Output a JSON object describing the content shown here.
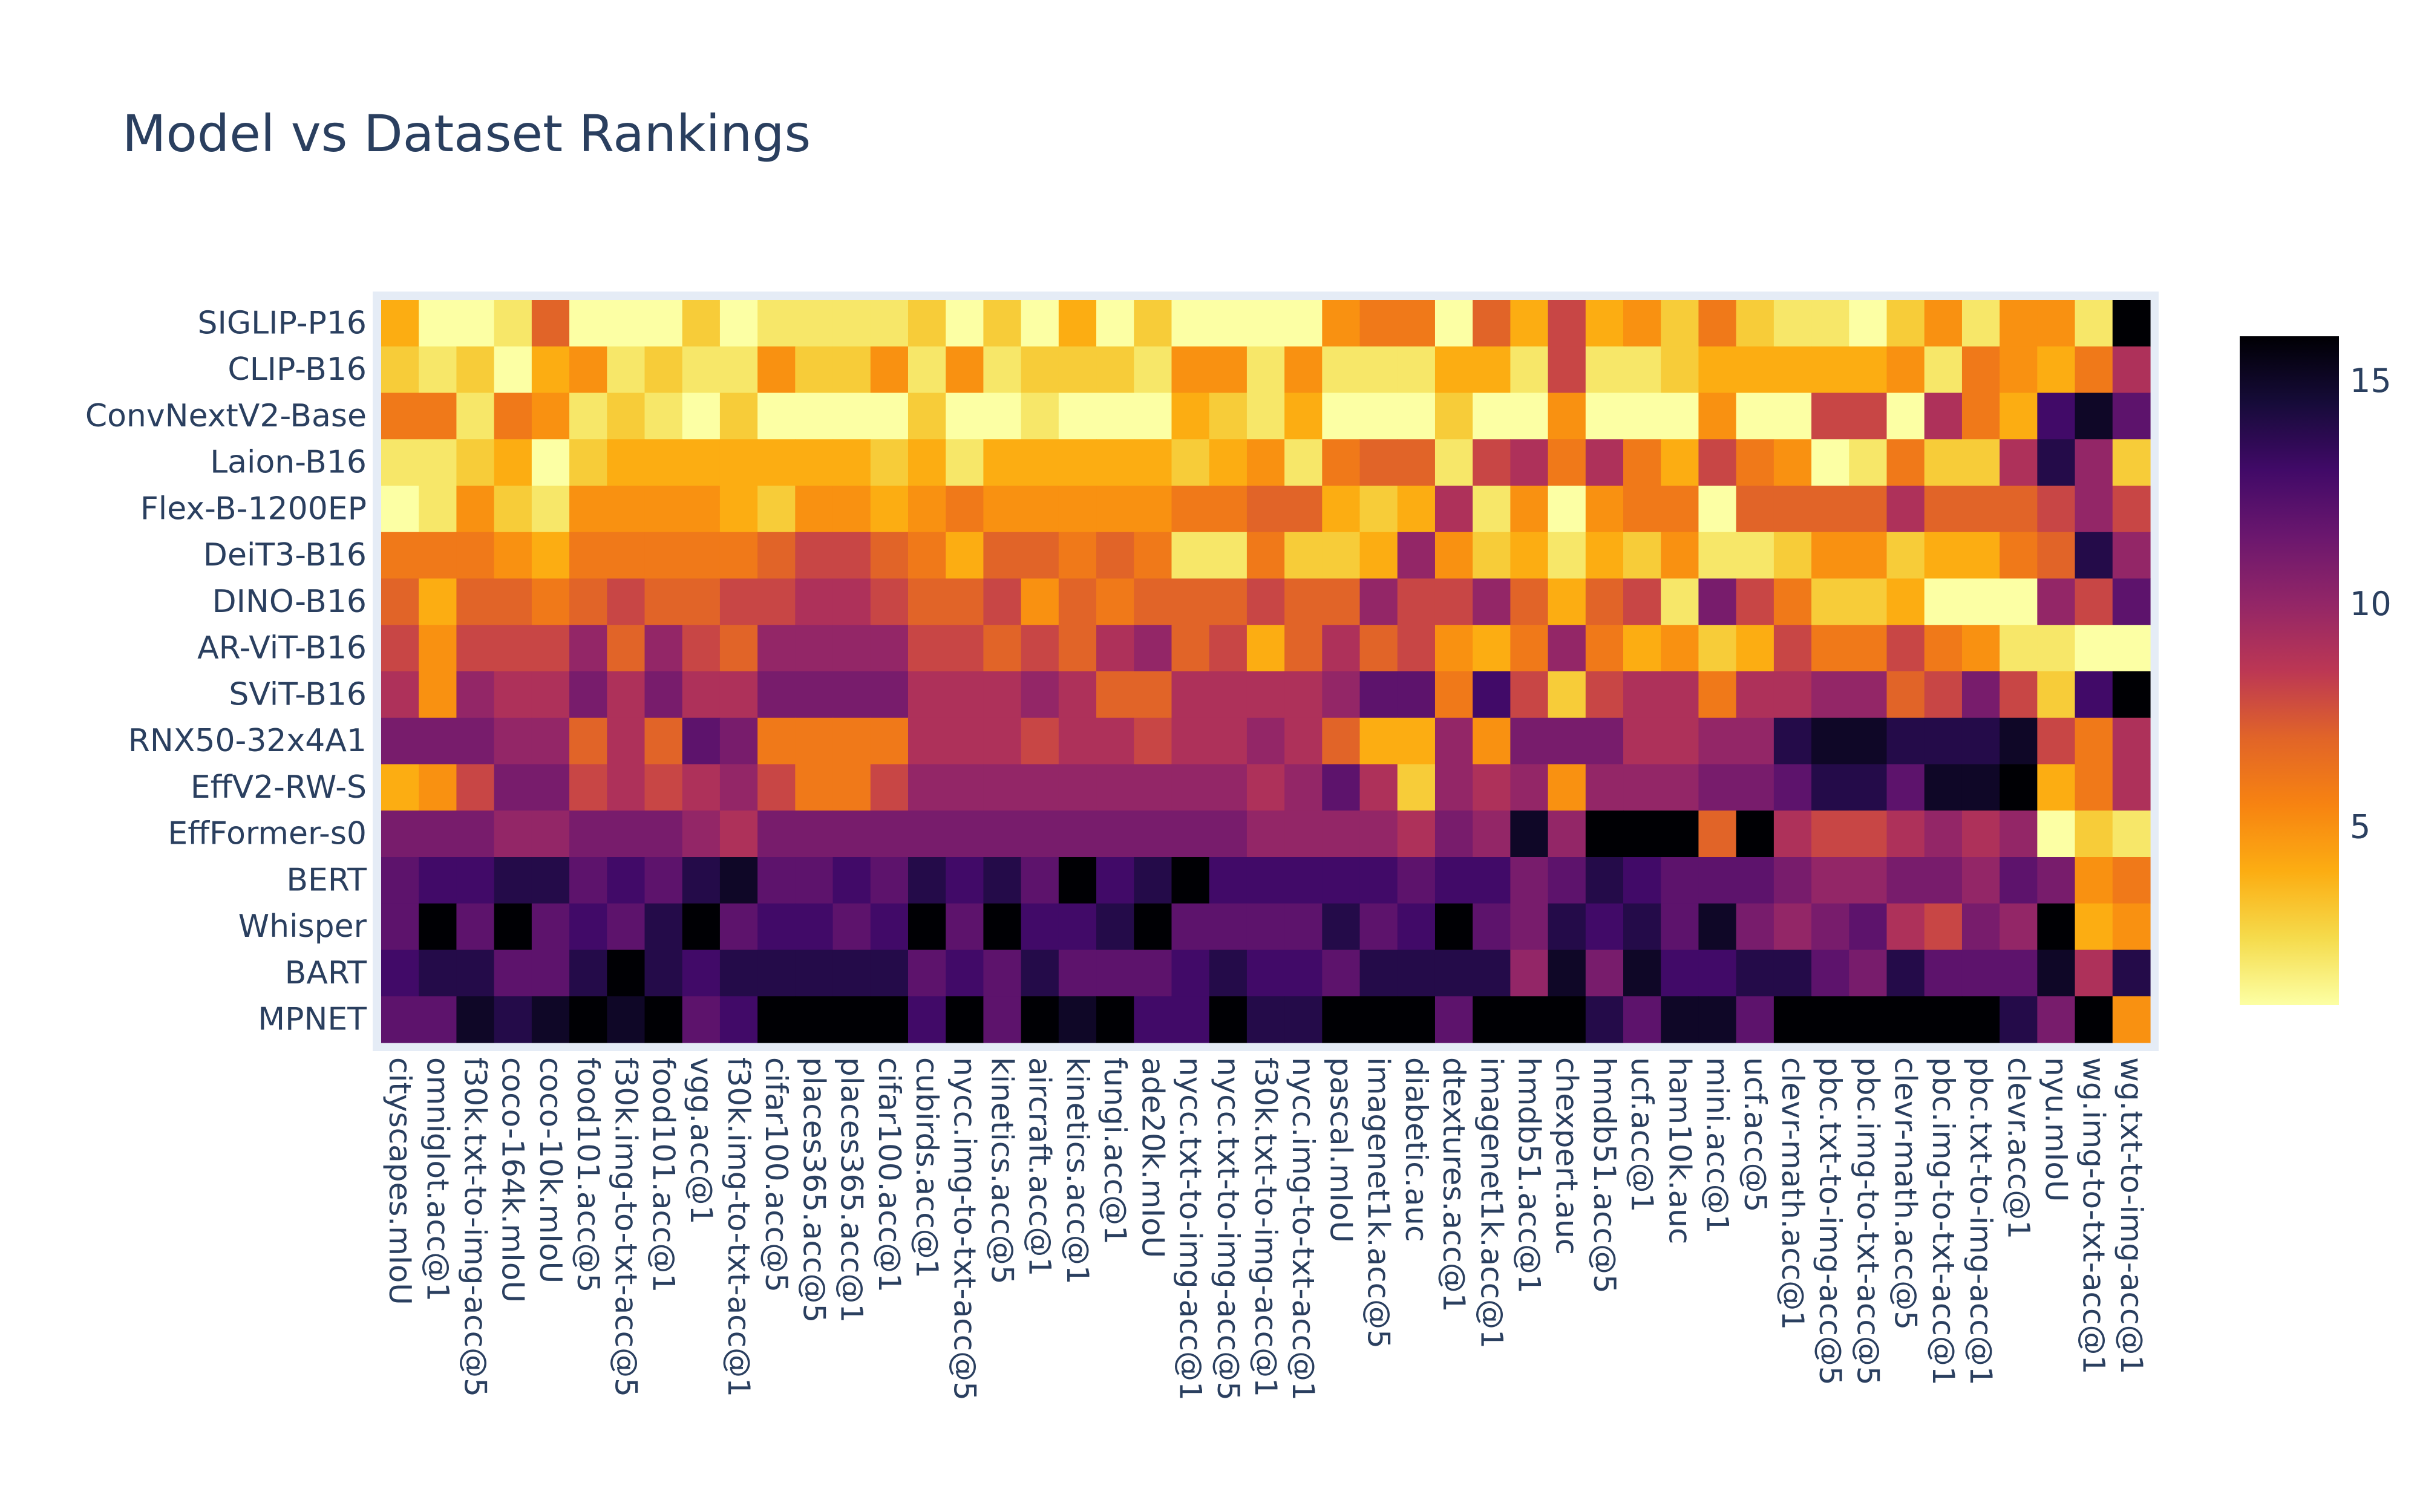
{
  "chart_data": {
    "type": "heatmap",
    "title": "Model vs Dataset Rankings",
    "colorscale": "Inferno (reversed)",
    "colorbar": {
      "range": [
        1,
        16
      ],
      "ticks": [
        5,
        10,
        15
      ]
    },
    "y_categories": [
      "SIGLIP-P16",
      "CLIP-B16",
      "ConvNextV2-Base",
      "Laion-B16",
      "Flex-B-1200EP",
      "DeiT3-B16",
      "DINO-B16",
      "AR-ViT-B16",
      "SViT-B16",
      "RNX50-32x4A1",
      "EffV2-RW-S",
      "EffFormer-s0",
      "BERT",
      "Whisper",
      "BART",
      "MPNET"
    ],
    "x_categories": [
      "cityscapes.mIoU",
      "omniglot.acc@1",
      "f30k.txt-to-img-acc@5",
      "coco-164k.mIoU",
      "coco-10k.mIoU",
      "food101.acc@5",
      "f30k.img-to-txt-acc@5",
      "food101.acc@1",
      "vgg.acc@1",
      "f30k.img-to-txt-acc@1",
      "cifar100.acc@5",
      "places365.acc@5",
      "places365.acc@1",
      "cifar100.acc@1",
      "cubirds.acc@1",
      "nycc.img-to-txt-acc@5",
      "kinetics.acc@5",
      "aircraft.acc@1",
      "kinetics.acc@1",
      "fungi.acc@1",
      "ade20k.mIoU",
      "nycc.txt-to-img-acc@1",
      "nycc.txt-to-img-acc@5",
      "f30k.txt-to-img-acc@1",
      "nycc.img-to-txt-acc@1",
      "pascal.mIoU",
      "imagenet1k.acc@5",
      "diabetic.auc",
      "dtextures.acc@1",
      "imagenet1k.acc@1",
      "hmdb51.acc@1",
      "chexpert.auc",
      "hmdb51.acc@5",
      "ucf.acc@1",
      "ham10k.auc",
      "mini.acc@1",
      "ucf.acc@5",
      "clevr-math.acc@1",
      "pbc.txt-to-img-acc@5",
      "pbc.img-to-txt-acc@5",
      "clevr-math.acc@5",
      "pbc.img-to-txt-acc@1",
      "pbc.txt-to-img-acc@1",
      "clevr.acc@1",
      "nyu.mIoU",
      "wg.img-to-txt-acc@1",
      "wg.txt-to-img-acc@1"
    ],
    "z": [
      [
        4,
        1,
        1,
        2,
        7,
        1,
        1,
        1,
        3,
        1,
        2,
        2,
        2,
        2,
        3,
        1,
        3,
        1,
        4,
        1,
        3,
        1,
        1,
        1,
        1,
        5,
        6,
        6,
        1,
        7,
        4,
        8,
        4,
        5,
        3,
        6,
        3,
        2,
        2,
        1,
        3,
        5,
        2,
        5,
        5,
        2,
        16
      ],
      [
        3,
        2,
        3,
        1,
        4,
        5,
        2,
        3,
        2,
        2,
        5,
        3,
        3,
        5,
        2,
        5,
        2,
        3,
        3,
        3,
        2,
        5,
        5,
        2,
        5,
        2,
        2,
        2,
        4,
        4,
        2,
        8,
        2,
        2,
        3,
        4,
        4,
        4,
        4,
        4,
        5,
        2,
        6,
        5,
        4,
        6,
        9
      ],
      [
        6,
        6,
        2,
        6,
        5,
        2,
        3,
        2,
        1,
        3,
        1,
        1,
        1,
        1,
        3,
        1,
        1,
        2,
        1,
        1,
        1,
        4,
        3,
        2,
        4,
        1,
        1,
        1,
        3,
        1,
        1,
        5,
        1,
        1,
        1,
        5,
        1,
        1,
        8,
        8,
        1,
        9,
        6,
        4,
        13,
        15,
        12
      ],
      [
        2,
        2,
        3,
        4,
        1,
        3,
        4,
        4,
        4,
        4,
        4,
        4,
        4,
        3,
        4,
        2,
        4,
        4,
        4,
        4,
        4,
        3,
        4,
        5,
        2,
        6,
        7,
        7,
        2,
        8,
        9,
        6,
        9,
        6,
        4,
        8,
        6,
        5,
        1,
        2,
        6,
        3,
        3,
        9,
        14,
        10,
        3
      ],
      [
        1,
        2,
        5,
        3,
        2,
        5,
        5,
        5,
        5,
        4,
        3,
        5,
        5,
        4,
        5,
        6,
        5,
        5,
        5,
        5,
        5,
        6,
        6,
        7,
        7,
        4,
        3,
        4,
        9,
        2,
        5,
        1,
        5,
        6,
        6,
        1,
        7,
        7,
        7,
        7,
        9,
        7,
        7,
        7,
        8,
        10,
        8
      ],
      [
        6,
        6,
        6,
        5,
        4,
        6,
        6,
        6,
        6,
        6,
        7,
        8,
        8,
        7,
        6,
        4,
        7,
        7,
        6,
        7,
        6,
        2,
        2,
        6,
        3,
        3,
        4,
        10,
        5,
        3,
        4,
        2,
        4,
        3,
        5,
        2,
        2,
        3,
        5,
        5,
        3,
        4,
        4,
        6,
        7,
        14,
        10
      ],
      [
        7,
        4,
        7,
        7,
        6,
        7,
        8,
        7,
        7,
        8,
        8,
        9,
        9,
        8,
        7,
        7,
        8,
        5,
        7,
        6,
        7,
        7,
        7,
        8,
        7,
        7,
        10,
        8,
        8,
        10,
        7,
        4,
        7,
        8,
        2,
        11,
        8,
        6,
        3,
        3,
        4,
        1,
        1,
        1,
        10,
        8,
        12
      ],
      [
        8,
        5,
        8,
        8,
        8,
        10,
        7,
        10,
        8,
        7,
        10,
        10,
        10,
        10,
        8,
        8,
        7,
        8,
        7,
        9,
        10,
        7,
        8,
        4,
        7,
        9,
        7,
        8,
        5,
        4,
        6,
        10,
        6,
        4,
        5,
        3,
        4,
        8,
        6,
        6,
        8,
        6,
        5,
        2,
        2,
        1,
        1
      ],
      [
        9,
        5,
        10,
        9,
        9,
        11,
        9,
        11,
        9,
        9,
        11,
        11,
        11,
        11,
        9,
        9,
        9,
        10,
        9,
        7,
        7,
        9,
        9,
        9,
        9,
        10,
        12,
        12,
        6,
        13,
        8,
        3,
        8,
        9,
        9,
        6,
        9,
        9,
        10,
        10,
        7,
        8,
        11,
        8,
        3,
        13,
        16
      ],
      [
        11,
        11,
        11,
        10,
        10,
        7,
        9,
        7,
        12,
        11,
        6,
        6,
        6,
        6,
        9,
        9,
        9,
        8,
        9,
        9,
        8,
        9,
        9,
        10,
        9,
        7,
        4,
        4,
        10,
        5,
        11,
        11,
        11,
        9,
        9,
        10,
        10,
        14,
        15,
        15,
        14,
        14,
        14,
        15,
        8,
        6,
        9
      ],
      [
        4,
        5,
        8,
        11,
        11,
        8,
        9,
        8,
        9,
        10,
        8,
        6,
        6,
        8,
        10,
        10,
        10,
        10,
        10,
        10,
        10,
        10,
        10,
        9,
        10,
        12,
        9,
        3,
        10,
        9,
        10,
        5,
        10,
        10,
        10,
        11,
        11,
        12,
        14,
        14,
        12,
        15,
        15,
        16,
        4,
        6,
        9
      ],
      [
        11,
        11,
        11,
        10,
        10,
        11,
        11,
        11,
        10,
        9,
        11,
        11,
        11,
        11,
        11,
        11,
        11,
        11,
        11,
        11,
        11,
        11,
        11,
        10,
        10,
        10,
        10,
        9,
        11,
        10,
        15,
        10,
        16,
        16,
        16,
        7,
        16,
        9,
        8,
        8,
        9,
        10,
        9,
        10,
        1,
        3,
        2
      ],
      [
        12,
        13,
        13,
        14,
        14,
        12,
        13,
        12,
        14,
        15,
        12,
        12,
        13,
        12,
        14,
        13,
        14,
        12,
        16,
        13,
        14,
        16,
        13,
        13,
        13,
        13,
        13,
        12,
        13,
        13,
        11,
        12,
        14,
        13,
        12,
        12,
        12,
        11,
        10,
        10,
        11,
        11,
        10,
        12,
        11,
        5,
        6
      ],
      [
        12,
        16,
        12,
        16,
        12,
        13,
        12,
        14,
        16,
        12,
        13,
        13,
        12,
        13,
        16,
        12,
        16,
        13,
        13,
        14,
        16,
        12,
        12,
        12,
        12,
        14,
        12,
        13,
        16,
        12,
        11,
        14,
        13,
        14,
        12,
        15,
        11,
        10,
        11,
        12,
        9,
        8,
        11,
        10,
        16,
        4,
        5
      ],
      [
        13,
        14,
        14,
        12,
        12,
        14,
        16,
        14,
        13,
        14,
        14,
        14,
        14,
        14,
        12,
        13,
        12,
        14,
        12,
        12,
        12,
        13,
        14,
        13,
        13,
        12,
        14,
        14,
        14,
        14,
        10,
        15,
        11,
        15,
        13,
        13,
        14,
        14,
        12,
        11,
        14,
        12,
        12,
        12,
        15,
        9,
        14
      ],
      [
        12,
        12,
        15,
        14,
        15,
        16,
        15,
        16,
        12,
        13,
        16,
        16,
        16,
        16,
        13,
        16,
        12,
        16,
        15,
        16,
        13,
        13,
        16,
        14,
        14,
        16,
        16,
        16,
        12,
        16,
        16,
        16,
        14,
        12,
        15,
        15,
        12,
        16,
        16,
        16,
        16,
        16,
        16,
        14,
        11,
        16,
        5
      ]
    ]
  }
}
